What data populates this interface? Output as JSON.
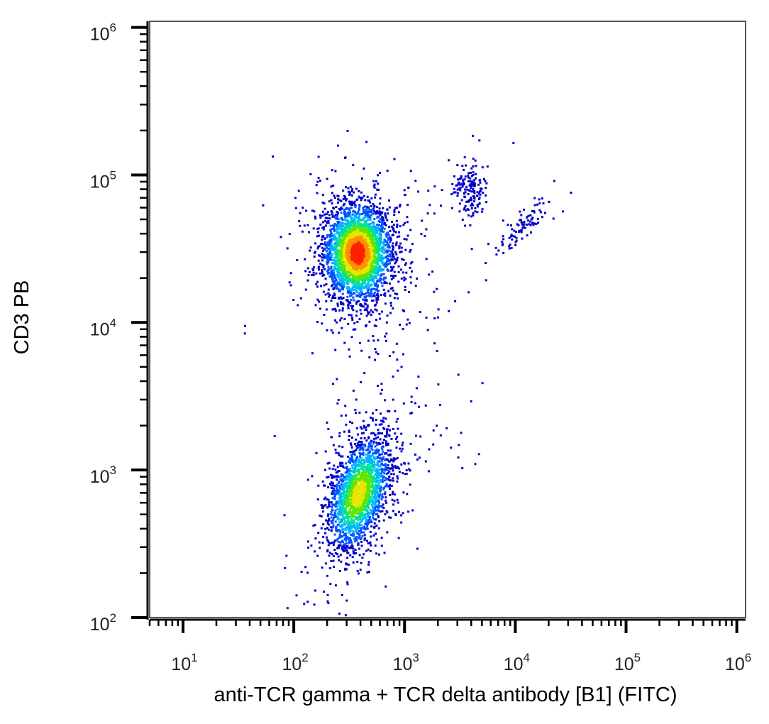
{
  "chart_data": {
    "type": "scatter",
    "subtype": "flow-cytometry-density",
    "xlabel": "anti-TCR gamma + TCR delta antibody [B1] (FITC)",
    "ylabel": "CD3 PB",
    "xscale": "log",
    "yscale": "log",
    "xlim": [
      5,
      1200000
    ],
    "ylim": [
      100,
      1100000
    ],
    "x_ticks": [
      {
        "base": "10",
        "exp": "1",
        "value": 10
      },
      {
        "base": "10",
        "exp": "2",
        "value": 100
      },
      {
        "base": "10",
        "exp": "3",
        "value": 1000
      },
      {
        "base": "10",
        "exp": "4",
        "value": 10000
      },
      {
        "base": "10",
        "exp": "5",
        "value": 100000
      },
      {
        "base": "10",
        "exp": "6",
        "value": 1000000
      }
    ],
    "y_ticks": [
      {
        "base": "10",
        "exp": "2",
        "value": 100
      },
      {
        "base": "10",
        "exp": "3",
        "value": 1000
      },
      {
        "base": "10",
        "exp": "4",
        "value": 10000
      },
      {
        "base": "10",
        "exp": "5",
        "value": 100000
      },
      {
        "base": "10",
        "exp": "6",
        "value": 1000000
      }
    ],
    "grid": false,
    "legend": "none",
    "colormap": [
      "#0000c8",
      "#0050ff",
      "#00b4ff",
      "#00e0a0",
      "#5ee600",
      "#e6e600",
      "#ff9000",
      "#ff2000"
    ],
    "populations": [
      {
        "x_center": 370,
        "y_center": 30000,
        "x_spread_decades": 0.15,
        "y_spread_decades": 0.16,
        "relative_size": 1.0
      },
      {
        "x_center": 380,
        "y_center": 700,
        "x_spread_decades": 0.14,
        "y_spread_decades": 0.17,
        "relative_size": 0.65
      },
      {
        "x_center": 3800,
        "y_center": 80000,
        "x_spread_decades": 0.08,
        "y_spread_decades": 0.08,
        "relative_size": 0.05
      },
      {
        "x_center": 11000,
        "y_center": 45000,
        "x_spread_decades": 0.12,
        "y_spread_decades": 0.1,
        "relative_size": 0.03
      }
    ]
  }
}
